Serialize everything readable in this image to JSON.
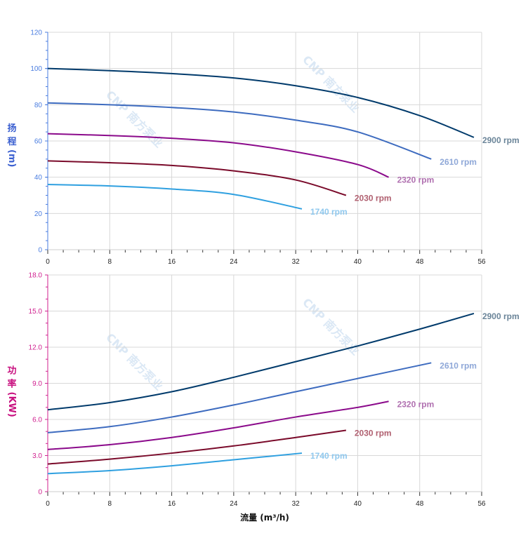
{
  "watermark": "CNP 南方泵业",
  "chart_data": [
    {
      "type": "line",
      "ylabel": [
        "扬",
        "程",
        "(m)"
      ],
      "xlabel": "",
      "xlim": [
        0,
        56
      ],
      "ylim": [
        0,
        120
      ],
      "xticks": [
        "0",
        "8",
        "16",
        "24",
        "32",
        "40",
        "48",
        "56"
      ],
      "yticks": [
        "0",
        "20",
        "40",
        "60",
        "80",
        "100",
        "120"
      ],
      "grid": true,
      "axis_color": "#4a7de0",
      "series": [
        {
          "name": "2900 rpm",
          "color": "#003a6b",
          "label_color": "#6b8599",
          "x": [
            0,
            8,
            16,
            24,
            32,
            40,
            48,
            55
          ],
          "y": [
            100,
            98.8,
            97.2,
            94.8,
            90.5,
            84,
            74,
            62
          ]
        },
        {
          "name": "2610 rpm",
          "color": "#3d6bbf",
          "label_color": "#8fa8d8",
          "x": [
            0,
            8,
            16,
            24,
            32,
            40,
            49.5
          ],
          "y": [
            81,
            80,
            78.5,
            76,
            71.5,
            65,
            50
          ]
        },
        {
          "name": "2320 rpm",
          "color": "#8b0a8b",
          "label_color": "#b070b0",
          "x": [
            0,
            8,
            16,
            24,
            32,
            40,
            44
          ],
          "y": [
            64,
            63,
            61.5,
            59,
            54,
            47,
            40
          ]
        },
        {
          "name": "2030 rpm",
          "color": "#7a0a2a",
          "label_color": "#b06070",
          "x": [
            0,
            8,
            16,
            24,
            32,
            38.5
          ],
          "y": [
            49,
            48,
            46.5,
            43.5,
            38.5,
            30
          ]
        },
        {
          "name": "1740 rpm",
          "color": "#2fa0e0",
          "label_color": "#8fc8ee",
          "x": [
            0,
            8,
            16,
            24,
            32.8
          ],
          "y": [
            36,
            35.2,
            33.5,
            30.5,
            22.5
          ]
        }
      ]
    },
    {
      "type": "line",
      "ylabel": [
        "功",
        "率",
        "(KW)"
      ],
      "xlabel": "流量 (m³/h)",
      "xlim": [
        0,
        56
      ],
      "ylim": [
        0,
        18
      ],
      "xticks": [
        "0",
        "8",
        "16",
        "24",
        "32",
        "40",
        "48",
        "56"
      ],
      "yticks": [
        "0",
        "3.0",
        "6.0",
        "9.0",
        "12.0",
        "15.0",
        "18.0"
      ],
      "grid": true,
      "axis_color": "#d0208f",
      "series": [
        {
          "name": "2900 rpm",
          "color": "#003a6b",
          "label_color": "#6b8599",
          "x": [
            0,
            8,
            16,
            24,
            32,
            40,
            48,
            55
          ],
          "y": [
            6.8,
            7.4,
            8.3,
            9.5,
            10.8,
            12.1,
            13.5,
            14.8
          ]
        },
        {
          "name": "2610 rpm",
          "color": "#3d6bbf",
          "label_color": "#8fa8d8",
          "x": [
            0,
            8,
            16,
            24,
            32,
            40,
            49.5
          ],
          "y": [
            4.9,
            5.4,
            6.2,
            7.2,
            8.3,
            9.4,
            10.7
          ]
        },
        {
          "name": "2320 rpm",
          "color": "#8b0a8b",
          "label_color": "#b070b0",
          "x": [
            0,
            8,
            16,
            24,
            32,
            40,
            44
          ],
          "y": [
            3.5,
            3.9,
            4.5,
            5.3,
            6.2,
            7.0,
            7.5
          ]
        },
        {
          "name": "2030 rpm",
          "color": "#7a0a2a",
          "label_color": "#b06070",
          "x": [
            0,
            8,
            16,
            24,
            32,
            38.5
          ],
          "y": [
            2.3,
            2.7,
            3.2,
            3.8,
            4.5,
            5.1
          ]
        },
        {
          "name": "1740 rpm",
          "color": "#2fa0e0",
          "label_color": "#8fc8ee",
          "x": [
            0,
            8,
            16,
            24,
            32.8
          ],
          "y": [
            1.5,
            1.75,
            2.15,
            2.65,
            3.2
          ]
        }
      ]
    }
  ]
}
